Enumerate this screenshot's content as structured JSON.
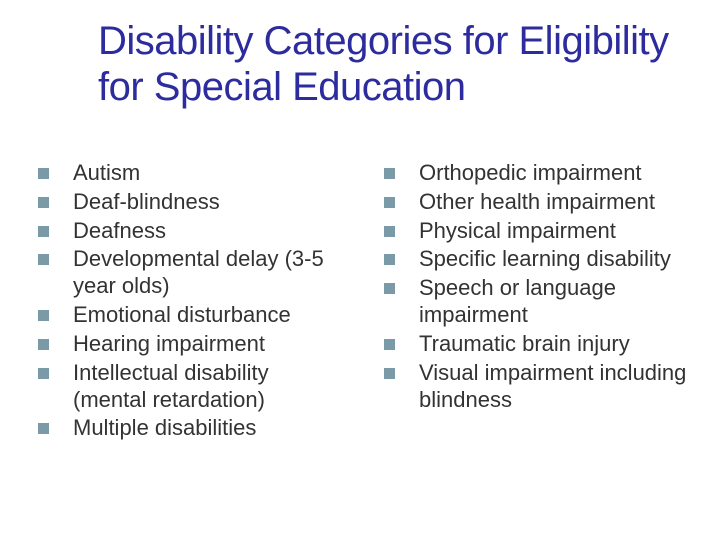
{
  "title": {
    "text": "Disability Categories for Eligibility for Special Education",
    "color": "#2c2c9e",
    "fontsize": 40
  },
  "bullet": {
    "size": 11,
    "color": "#7a9aa8"
  },
  "body": {
    "color": "#333333",
    "fontsize": 22
  },
  "columns": {
    "left": [
      "Autism",
      "Deaf-blindness",
      "Deafness",
      "Developmental delay (3-5 year olds)",
      "Emotional disturbance",
      "Hearing impairment",
      "Intellectual disability (mental retardation)",
      "Multiple disabilities"
    ],
    "right": [
      "Orthopedic impairment",
      "Other health impairment",
      "Physical impairment",
      "Specific learning disability",
      "Speech or language impairment",
      "Traumatic brain injury",
      "Visual impairment including blindness"
    ]
  }
}
